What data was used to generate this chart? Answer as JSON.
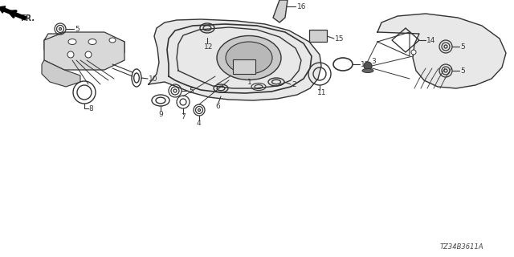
{
  "background_color": "#ffffff",
  "line_color": "#333333",
  "text_color": "#333333",
  "watermark": "TZ34B3611A",
  "figsize": [
    6.4,
    3.2
  ],
  "dpi": 100
}
